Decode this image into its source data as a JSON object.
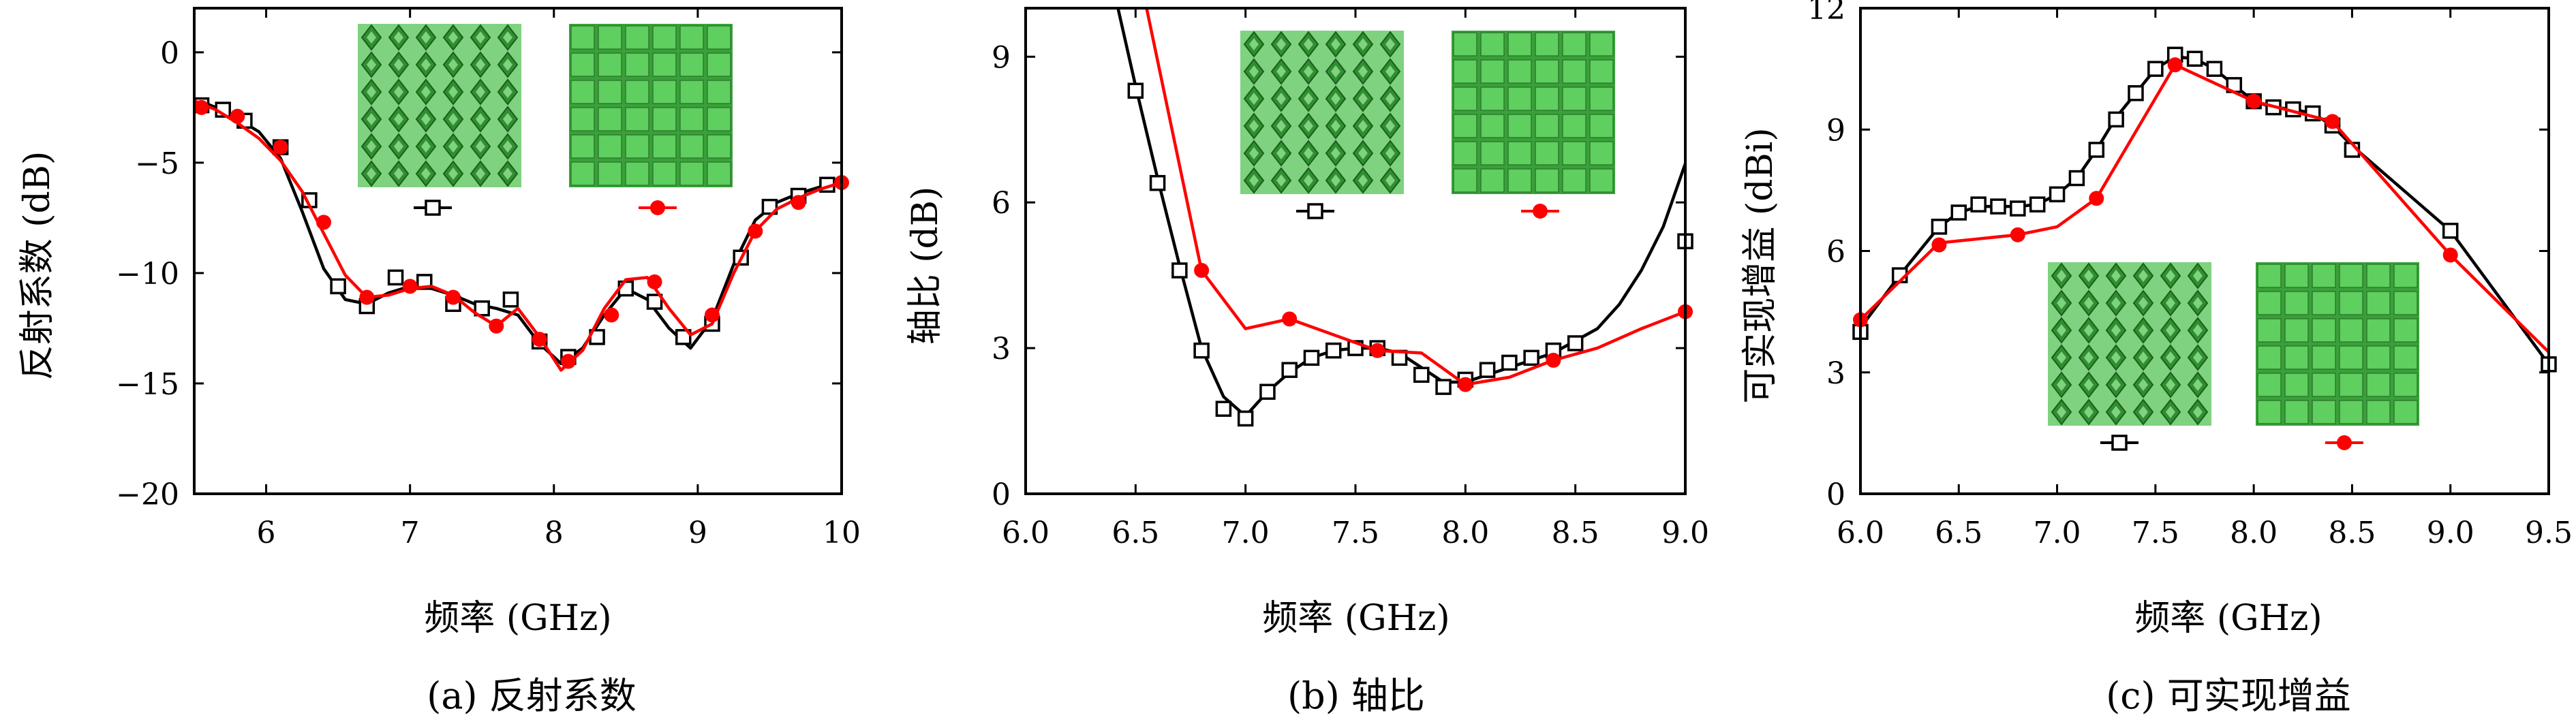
{
  "colors": {
    "series_a": "#000000",
    "series_b": "#ff0000",
    "cell_dark": "#2f8f2f",
    "cell_light": "#7fd27f",
    "patch": "#5fcf5f"
  },
  "chart_data": [
    {
      "type": "line",
      "caption": "(a) 反射系数",
      "xlabel": "频率 (GHz)",
      "ylabel": "反射系数 (dB)",
      "xlim": [
        5.5,
        10
      ],
      "ylim": [
        -20,
        2
      ],
      "xticks": [
        6,
        7,
        8,
        9,
        10
      ],
      "xtick_labels": [
        "6",
        "7",
        "8",
        "9",
        "10"
      ],
      "yticks": [
        -20,
        -15,
        -10,
        -5,
        0
      ],
      "ytick_labels": [
        "−20",
        "−15",
        "−10",
        "−5",
        "0"
      ],
      "grid": false,
      "legend": "inset-top",
      "series": [
        {
          "marker": "square",
          "x": [
            5.5,
            5.65,
            5.8,
            5.95,
            6.1,
            6.25,
            6.4,
            6.55,
            6.7,
            6.85,
            7.0,
            7.15,
            7.3,
            7.45,
            7.6,
            7.75,
            7.9,
            8.05,
            8.2,
            8.35,
            8.5,
            8.65,
            8.8,
            8.95,
            9.1,
            9.25,
            9.4,
            9.55,
            9.7,
            9.85,
            10.0
          ],
          "y": [
            -2.1,
            -2.5,
            -3.0,
            -3.6,
            -4.8,
            -7.2,
            -9.8,
            -11.2,
            -11.4,
            -10.9,
            -10.6,
            -10.7,
            -11.0,
            -11.4,
            -11.6,
            -11.9,
            -13.2,
            -14.1,
            -13.4,
            -11.9,
            -10.7,
            -11.2,
            -12.5,
            -13.4,
            -12.1,
            -9.6,
            -7.6,
            -6.8,
            -6.4,
            -6.1,
            -5.9
          ],
          "marker_x": [
            5.55,
            5.7,
            5.85,
            6.1,
            6.3,
            6.5,
            6.7,
            6.9,
            7.1,
            7.3,
            7.5,
            7.7,
            7.9,
            8.1,
            8.3,
            8.5,
            8.7,
            8.9,
            9.1,
            9.3,
            9.5,
            9.7,
            9.9
          ],
          "marker_y": [
            -2.4,
            -2.6,
            -3.1,
            -4.3,
            -6.7,
            -10.6,
            -11.5,
            -10.2,
            -10.4,
            -11.4,
            -11.6,
            -11.2,
            -13.1,
            -13.8,
            -12.9,
            -10.7,
            -11.3,
            -12.9,
            -12.3,
            -9.3,
            -7.0,
            -6.5,
            -6.0
          ]
        },
        {
          "marker": "circle",
          "x": [
            5.5,
            5.65,
            5.8,
            5.95,
            6.1,
            6.25,
            6.4,
            6.55,
            6.7,
            6.85,
            7.0,
            7.15,
            7.3,
            7.45,
            7.6,
            7.75,
            7.9,
            8.05,
            8.2,
            8.35,
            8.5,
            8.65,
            8.8,
            8.95,
            9.1,
            9.25,
            9.4,
            9.55,
            9.7,
            9.85,
            10.0
          ],
          "y": [
            -2.2,
            -2.6,
            -3.2,
            -3.9,
            -4.9,
            -6.3,
            -8.2,
            -10.1,
            -11.1,
            -11.0,
            -10.7,
            -10.6,
            -11.0,
            -11.8,
            -12.4,
            -11.6,
            -12.9,
            -14.4,
            -13.5,
            -11.6,
            -10.3,
            -10.2,
            -11.6,
            -12.8,
            -12.3,
            -10.0,
            -8.1,
            -7.1,
            -6.6,
            -6.2,
            -5.9
          ],
          "marker_x": [
            5.55,
            5.8,
            6.1,
            6.4,
            6.7,
            7.0,
            7.3,
            7.6,
            7.9,
            8.1,
            8.4,
            8.7,
            9.1,
            9.4,
            9.7,
            10.0
          ],
          "marker_y": [
            -2.5,
            -2.9,
            -4.3,
            -7.7,
            -11.1,
            -10.6,
            -11.1,
            -12.4,
            -13.0,
            -14.0,
            -11.9,
            -10.4,
            -11.9,
            -8.1,
            -6.8,
            -5.9
          ]
        }
      ]
    },
    {
      "type": "line",
      "caption": "(b) 轴比",
      "xlabel": "频率 (GHz)",
      "ylabel": "轴比 (dB)",
      "xlim": [
        6.0,
        9.0
      ],
      "ylim": [
        0,
        10
      ],
      "xticks": [
        6.0,
        6.5,
        7.0,
        7.5,
        8.0,
        8.5,
        9.0
      ],
      "xtick_labels": [
        "6.0",
        "6.5",
        "7.0",
        "7.5",
        "8.0",
        "8.5",
        "9.0"
      ],
      "yticks": [
        0,
        3,
        6,
        9
      ],
      "ytick_labels": [
        "0",
        "3",
        "6",
        "9"
      ],
      "grid": false,
      "legend": "inset-top",
      "series": [
        {
          "marker": "square",
          "x": [
            6.42,
            6.5,
            6.6,
            6.7,
            6.8,
            6.9,
            7.0,
            7.1,
            7.2,
            7.3,
            7.4,
            7.5,
            7.6,
            7.7,
            7.8,
            7.9,
            8.0,
            8.1,
            8.2,
            8.3,
            8.4,
            8.5,
            8.6,
            8.7,
            8.8,
            8.9,
            9.0
          ],
          "y": [
            10.0,
            8.4,
            6.5,
            4.7,
            3.0,
            2.0,
            1.6,
            2.1,
            2.5,
            2.8,
            2.95,
            3.0,
            3.0,
            2.9,
            2.6,
            2.3,
            2.3,
            2.45,
            2.6,
            2.75,
            2.9,
            3.15,
            3.4,
            3.9,
            4.6,
            5.5,
            6.8
          ],
          "marker_x": [
            6.5,
            6.6,
            6.7,
            6.8,
            6.9,
            7.0,
            7.1,
            7.2,
            7.3,
            7.4,
            7.5,
            7.6,
            7.7,
            7.8,
            7.9,
            8.0,
            8.1,
            8.2,
            8.3,
            8.4,
            8.5,
            9.0
          ],
          "marker_y": [
            8.3,
            6.4,
            4.6,
            2.95,
            1.75,
            1.55,
            2.1,
            2.55,
            2.8,
            2.95,
            3.0,
            3.0,
            2.8,
            2.45,
            2.2,
            2.35,
            2.55,
            2.7,
            2.8,
            2.95,
            3.1,
            5.2
          ]
        },
        {
          "marker": "circle",
          "x": [
            6.55,
            6.8,
            7.0,
            7.2,
            7.6,
            7.8,
            8.0,
            8.2,
            8.4,
            8.6,
            8.8,
            9.0
          ],
          "y": [
            10.0,
            4.6,
            3.4,
            3.6,
            2.95,
            2.9,
            2.25,
            2.4,
            2.75,
            3.0,
            3.4,
            3.75
          ],
          "marker_x": [
            6.8,
            7.2,
            7.6,
            8.0,
            8.4,
            9.0
          ],
          "marker_y": [
            4.6,
            3.6,
            2.95,
            2.25,
            2.75,
            3.75
          ]
        }
      ]
    },
    {
      "type": "line",
      "caption": "(c) 可实现增益",
      "xlabel": "频率 (GHz)",
      "ylabel": "可实现增益 (dBi)",
      "xlim": [
        6.0,
        9.5
      ],
      "ylim": [
        0,
        12
      ],
      "xticks": [
        6.0,
        6.5,
        7.0,
        7.5,
        8.0,
        8.5,
        9.0,
        9.5
      ],
      "xtick_labels": [
        "6.0",
        "6.5",
        "7.0",
        "7.5",
        "8.0",
        "8.5",
        "9.0",
        "9.5"
      ],
      "yticks": [
        0,
        3,
        6,
        9,
        12
      ],
      "ytick_labels": [
        "0",
        "3",
        "6",
        "9",
        "12"
      ],
      "grid": false,
      "legend": "inset-bottom",
      "series": [
        {
          "marker": "square",
          "x": [
            6.0,
            6.2,
            6.4,
            6.5,
            6.6,
            6.7,
            6.8,
            6.9,
            7.0,
            7.1,
            7.2,
            7.3,
            7.4,
            7.5,
            7.6,
            7.7,
            7.8,
            7.9,
            8.0,
            8.1,
            8.2,
            8.3,
            8.4,
            8.5,
            9.0,
            9.5
          ],
          "y": [
            4.1,
            5.4,
            6.6,
            6.95,
            7.1,
            7.1,
            7.1,
            7.15,
            7.4,
            7.8,
            8.5,
            9.3,
            9.9,
            10.5,
            10.8,
            10.75,
            10.5,
            10.1,
            9.7,
            9.55,
            9.5,
            9.4,
            9.1,
            8.6,
            6.5,
            3.2
          ],
          "marker_x": [
            6.0,
            6.2,
            6.4,
            6.5,
            6.6,
            6.7,
            6.8,
            6.9,
            7.0,
            7.1,
            7.2,
            7.3,
            7.4,
            7.5,
            7.6,
            7.7,
            7.8,
            7.9,
            8.0,
            8.1,
            8.2,
            8.3,
            8.4,
            8.5,
            9.0,
            9.5
          ],
          "marker_y": [
            4.0,
            5.4,
            6.6,
            6.95,
            7.15,
            7.1,
            7.05,
            7.15,
            7.4,
            7.8,
            8.5,
            9.25,
            9.9,
            10.5,
            10.85,
            10.75,
            10.5,
            10.1,
            9.7,
            9.55,
            9.5,
            9.4,
            9.1,
            8.5,
            6.5,
            3.2
          ]
        },
        {
          "marker": "circle",
          "x": [
            6.0,
            6.4,
            6.8,
            7.0,
            7.2,
            7.6,
            8.0,
            8.4,
            9.0,
            9.5
          ],
          "y": [
            4.3,
            6.2,
            6.4,
            6.6,
            7.3,
            10.6,
            9.7,
            9.2,
            5.9,
            3.5
          ],
          "marker_x": [
            6.0,
            6.4,
            6.8,
            7.2,
            7.6,
            8.0,
            8.4,
            9.0
          ],
          "marker_y": [
            4.3,
            6.15,
            6.4,
            7.3,
            10.6,
            9.7,
            9.2,
            5.9
          ]
        }
      ]
    }
  ]
}
